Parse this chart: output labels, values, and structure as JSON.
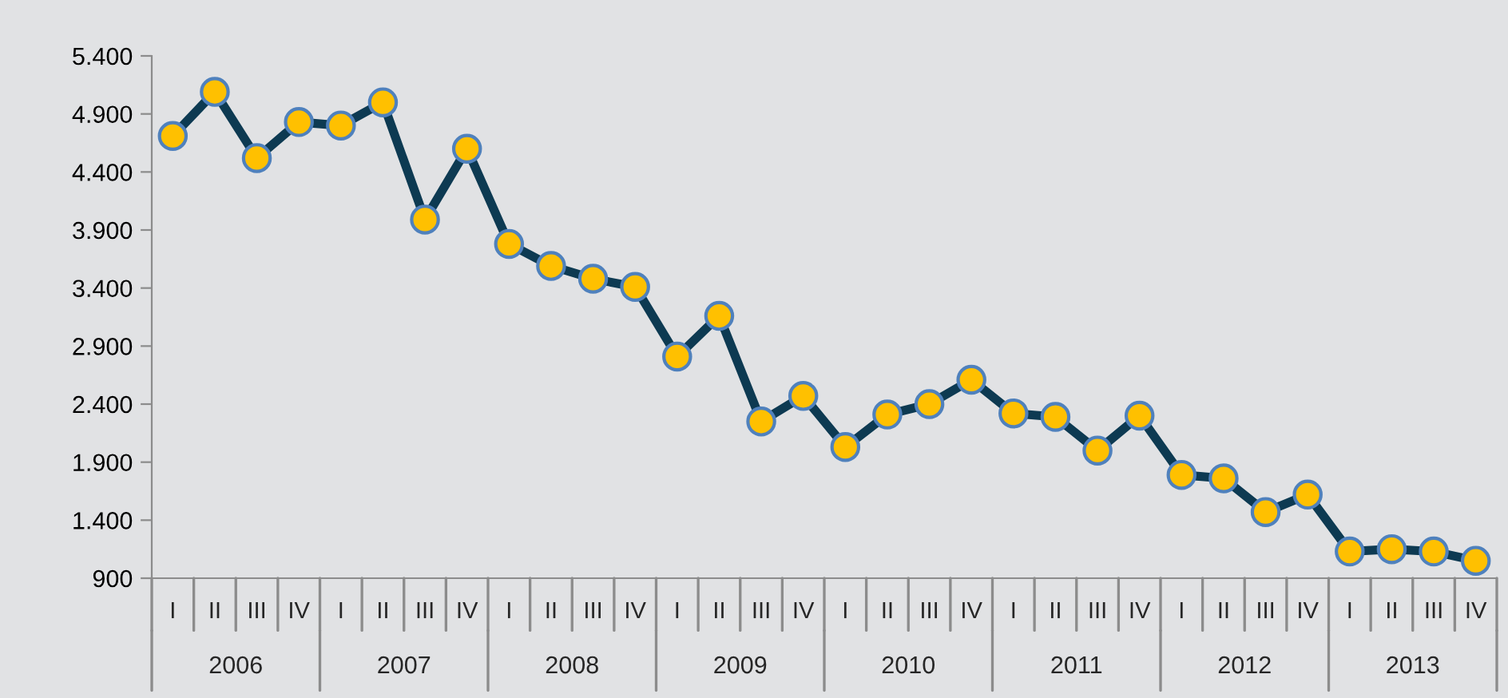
{
  "chart_data": {
    "type": "line",
    "categories": [
      "I",
      "II",
      "III",
      "IV",
      "I",
      "II",
      "III",
      "IV",
      "I",
      "II",
      "III",
      "IV",
      "I",
      "II",
      "III",
      "IV",
      "I",
      "II",
      "III",
      "IV",
      "I",
      "II",
      "III",
      "IV",
      "I",
      "II",
      "III",
      "IV",
      "I",
      "II",
      "III",
      "IV"
    ],
    "series": [
      {
        "color": "#0d3a52",
        "values": [
          4710,
          5090,
          4520,
          4830,
          4800,
          5000,
          3990,
          4600,
          3780,
          3590,
          3480,
          3410,
          2810,
          3160,
          2250,
          2470,
          2030,
          2310,
          2400,
          2610,
          2320,
          2290,
          2000,
          2300,
          1790,
          1760,
          1470,
          1620,
          1130,
          1150,
          1130,
          1050
        ]
      }
    ],
    "annotations": [
      "2006",
      "2007",
      "2008",
      "2009",
      "2010",
      "2011",
      "2012",
      "2013"
    ],
    "ylim": [
      900,
      5400
    ],
    "yticks": [
      {
        "value": 900,
        "label": "900"
      },
      {
        "value": 1400,
        "label": "1.400"
      },
      {
        "value": 1900,
        "label": "1.900"
      },
      {
        "value": 2400,
        "label": "2.400"
      },
      {
        "value": 2900,
        "label": "2.900"
      },
      {
        "value": 3400,
        "label": "3.400"
      },
      {
        "value": 3900,
        "label": "3.900"
      },
      {
        "value": 4400,
        "label": "4.400"
      },
      {
        "value": 4900,
        "label": "4.900"
      },
      {
        "value": 5400,
        "label": "5.400"
      }
    ],
    "marker": "circle",
    "line_style": "solid",
    "grid": false,
    "legend": false
  }
}
